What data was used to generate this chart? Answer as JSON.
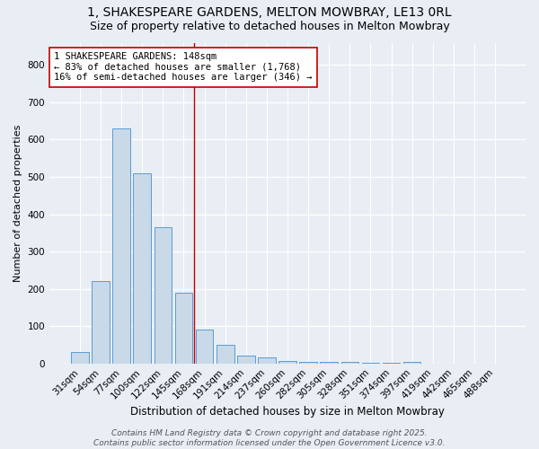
{
  "title": "1, SHAKESPEARE GARDENS, MELTON MOWBRAY, LE13 0RL",
  "subtitle": "Size of property relative to detached houses in Melton Mowbray",
  "xlabel": "Distribution of detached houses by size in Melton Mowbray",
  "ylabel": "Number of detached properties",
  "bar_values": [
    30,
    222,
    630,
    510,
    365,
    190,
    90,
    50,
    22,
    15,
    7,
    3,
    3,
    3,
    2,
    1,
    3,
    0,
    0,
    0,
    0
  ],
  "bar_labels": [
    "31sqm",
    "54sqm",
    "77sqm",
    "100sqm",
    "122sqm",
    "145sqm",
    "168sqm",
    "191sqm",
    "214sqm",
    "237sqm",
    "260sqm",
    "282sqm",
    "305sqm",
    "328sqm",
    "351sqm",
    "374sqm",
    "397sqm",
    "419sqm",
    "442sqm",
    "465sqm",
    "488sqm"
  ],
  "n_bars": 21,
  "ylim": [
    0,
    860
  ],
  "yticks": [
    0,
    100,
    200,
    300,
    400,
    500,
    600,
    700,
    800
  ],
  "bar_color": "#c9d9e8",
  "bar_edge_color": "#5b9bd5",
  "vline_x": 5.5,
  "vline_color": "#c00000",
  "annotation_text": "1 SHAKESPEARE GARDENS: 148sqm\n← 83% of detached houses are smaller (1,768)\n16% of semi-detached houses are larger (346) →",
  "annotation_box_color": "white",
  "annotation_box_edge": "#c00000",
  "background_color": "#e8eef4",
  "grid_color": "white",
  "footer_line1": "Contains HM Land Registry data © Crown copyright and database right 2025.",
  "footer_line2": "Contains public sector information licensed under the Open Government Licence v3.0.",
  "title_fontsize": 10,
  "subtitle_fontsize": 9,
  "xlabel_fontsize": 8.5,
  "ylabel_fontsize": 8,
  "tick_fontsize": 7.5,
  "annotation_fontsize": 7.5,
  "footer_fontsize": 6.5
}
